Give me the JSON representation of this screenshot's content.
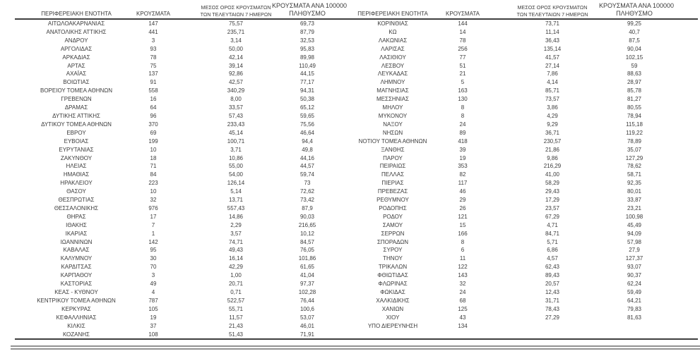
{
  "columns": {
    "region": "ΠΕΡΙΦΕΡΕΙΑΚΗ ΕΝΟΤΗΤΑ",
    "cases": "ΚΡΟΥΣΜΑΤΑ",
    "avg7_line1": "ΜΕΣΟΣ ΟΡΟΣ ΚΡΟΥΣΜΑΤΩΝ",
    "avg7_line2": "ΤΩΝ ΤΕΛΕΥΤΑΙΩΝ 7 ΗΜΕΡΩΝ",
    "per100k_line1": "ΚΡΟΥΣΜΑΤΑ ΑΝΑ 100000",
    "per100k_line2": "ΠΛΗΘΥΣΜΟ"
  },
  "colors": {
    "text": "#3b3b3b",
    "rule_dark": "#3f3f3f",
    "rule_gray": "#929292",
    "background": "#ffffff"
  },
  "left_table": {
    "rows": [
      {
        "region": "ΑΙΤΩΛΟΑΚΑΡΝΑΝΙΑΣ",
        "cases": "147",
        "avg7": "75,57",
        "per100k": "69,73"
      },
      {
        "region": "ΑΝΑΤΟΛΙΚΗΣ ΑΤΤΙΚΗΣ",
        "cases": "441",
        "avg7": "235,71",
        "per100k": "87,79"
      },
      {
        "region": "ΑΝΔΡΟΥ",
        "cases": "3",
        "avg7": "3,14",
        "per100k": "32,53"
      },
      {
        "region": "ΑΡΓΟΛΙΔΑΣ",
        "cases": "93",
        "avg7": "50,00",
        "per100k": "95,83"
      },
      {
        "region": "ΑΡΚΑΔΙΑΣ",
        "cases": "78",
        "avg7": "42,14",
        "per100k": "89,98"
      },
      {
        "region": "ΑΡΤΑΣ",
        "cases": "75",
        "avg7": "39,14",
        "per100k": "110,49"
      },
      {
        "region": "ΑΧΑΪΑΣ",
        "cases": "137",
        "avg7": "92,86",
        "per100k": "44,15"
      },
      {
        "region": "ΒΟΙΩΤΙΑΣ",
        "cases": "91",
        "avg7": "42,57",
        "per100k": "77,17"
      },
      {
        "region": "ΒΟΡΕΙΟΥ ΤΟΜΕΑ ΑΘΗΝΩΝ",
        "cases": "558",
        "avg7": "340,29",
        "per100k": "94,31"
      },
      {
        "region": "ΓΡΕΒΕΝΩΝ",
        "cases": "16",
        "avg7": "8,00",
        "per100k": "50,38"
      },
      {
        "region": "ΔΡΑΜΑΣ",
        "cases": "64",
        "avg7": "33,57",
        "per100k": "65,12"
      },
      {
        "region": "ΔΥΤΙΚΗΣ ΑΤΤΙΚΗΣ",
        "cases": "96",
        "avg7": "57,43",
        "per100k": "59,65"
      },
      {
        "region": "ΔΥΤΙΚΟΥ ΤΟΜΕΑ ΑΘΗΝΩΝ",
        "cases": "370",
        "avg7": "233,43",
        "per100k": "75,56"
      },
      {
        "region": "ΕΒΡΟΥ",
        "cases": "69",
        "avg7": "45,14",
        "per100k": "46,64"
      },
      {
        "region": "ΕΥΒΟΙΑΣ",
        "cases": "199",
        "avg7": "100,71",
        "per100k": "94,4"
      },
      {
        "region": "ΕΥΡΥΤΑΝΙΑΣ",
        "cases": "10",
        "avg7": "3,71",
        "per100k": "49,8"
      },
      {
        "region": "ΖΑΚΥΝΘΟΥ",
        "cases": "18",
        "avg7": "10,86",
        "per100k": "44,16"
      },
      {
        "region": "ΗΛΕΙΑΣ",
        "cases": "71",
        "avg7": "55,00",
        "per100k": "44,57"
      },
      {
        "region": "ΗΜΑΘΙΑΣ",
        "cases": "84",
        "avg7": "54,00",
        "per100k": "59,74"
      },
      {
        "region": "ΗΡΑΚΛΕΙΟΥ",
        "cases": "223",
        "avg7": "126,14",
        "per100k": "73"
      },
      {
        "region": "ΘΑΣΟΥ",
        "cases": "10",
        "avg7": "5,14",
        "per100k": "72,62"
      },
      {
        "region": "ΘΕΣΠΡΩΤΙΑΣ",
        "cases": "32",
        "avg7": "13,71",
        "per100k": "73,42"
      },
      {
        "region": "ΘΕΣΣΑΛΟΝΙΚΗΣ",
        "cases": "976",
        "avg7": "557,43",
        "per100k": "87,9"
      },
      {
        "region": "ΘΗΡΑΣ",
        "cases": "17",
        "avg7": "14,86",
        "per100k": "90,03"
      },
      {
        "region": "ΙΘΑΚΗΣ",
        "cases": "7",
        "avg7": "2,29",
        "per100k": "216,65"
      },
      {
        "region": "ΙΚΑΡΙΑΣ",
        "cases": "1",
        "avg7": "3,57",
        "per100k": "10,12"
      },
      {
        "region": "ΙΩΑΝΝΙΝΩΝ",
        "cases": "142",
        "avg7": "74,71",
        "per100k": "84,57"
      },
      {
        "region": "ΚΑΒΑΛΑΣ",
        "cases": "95",
        "avg7": "49,43",
        "per100k": "76,05"
      },
      {
        "region": "ΚΑΛΥΜΝΟΥ",
        "cases": "30",
        "avg7": "16,14",
        "per100k": "101,86"
      },
      {
        "region": "ΚΑΡΔΙΤΣΑΣ",
        "cases": "70",
        "avg7": "42,29",
        "per100k": "61,65"
      },
      {
        "region": "ΚΑΡΠΑΘΟΥ",
        "cases": "3",
        "avg7": "1,00",
        "per100k": "41,04"
      },
      {
        "region": "ΚΑΣΤΟΡΙΑΣ",
        "cases": "49",
        "avg7": "20,71",
        "per100k": "97,37"
      },
      {
        "region": "ΚΕΑΣ - ΚΥΘΝΟΥ",
        "cases": "4",
        "avg7": "0,71",
        "per100k": "102,28"
      },
      {
        "region": "ΚΕΝΤΡΙΚΟΥ ΤΟΜΕΑ ΑΘΗΝΩΝ",
        "cases": "787",
        "avg7": "522,57",
        "per100k": "76,44"
      },
      {
        "region": "ΚΕΡΚΥΡΑΣ",
        "cases": "105",
        "avg7": "55,71",
        "per100k": "100,6"
      },
      {
        "region": "ΚΕΦΑΛΛΗΝΙΑΣ",
        "cases": "19",
        "avg7": "11,57",
        "per100k": "53,07"
      },
      {
        "region": "ΚΙΛΚΙΣ",
        "cases": "37",
        "avg7": "21,43",
        "per100k": "46,01"
      },
      {
        "region": "ΚΟΖΑΝΗΣ",
        "cases": "108",
        "avg7": "51,43",
        "per100k": "71,91"
      }
    ]
  },
  "right_table": {
    "rows": [
      {
        "region": "ΚΟΡΙΝΘΙΑΣ",
        "cases": "144",
        "avg7": "73,71",
        "per100k": "99,25"
      },
      {
        "region": "ΚΩ",
        "cases": "14",
        "avg7": "11,14",
        "per100k": "40,7"
      },
      {
        "region": "ΛΑΚΩΝΙΑΣ",
        "cases": "78",
        "avg7": "36,43",
        "per100k": "87,5"
      },
      {
        "region": "ΛΑΡΙΣΑΣ",
        "cases": "256",
        "avg7": "135,14",
        "per100k": "90,04"
      },
      {
        "region": "ΛΑΣΙΘΙΟΥ",
        "cases": "77",
        "avg7": "41,57",
        "per100k": "102,15"
      },
      {
        "region": "ΛΕΣΒΟΥ",
        "cases": "51",
        "avg7": "27,14",
        "per100k": "59"
      },
      {
        "region": "ΛΕΥΚΑΔΑΣ",
        "cases": "21",
        "avg7": "7,86",
        "per100k": "88,63"
      },
      {
        "region": "ΛΗΜΝΟΥ",
        "cases": "5",
        "avg7": "4,14",
        "per100k": "28,97"
      },
      {
        "region": "ΜΑΓΝΗΣΙΑΣ",
        "cases": "163",
        "avg7": "85,71",
        "per100k": "85,78"
      },
      {
        "region": "ΜΕΣΣΗΝΙΑΣ",
        "cases": "130",
        "avg7": "73,57",
        "per100k": "81,27"
      },
      {
        "region": "ΜΗΛΟΥ",
        "cases": "8",
        "avg7": "3,86",
        "per100k": "80,55"
      },
      {
        "region": "ΜΥΚΟΝΟΥ",
        "cases": "8",
        "avg7": "4,29",
        "per100k": "78,94"
      },
      {
        "region": "ΝΑΞΟΥ",
        "cases": "24",
        "avg7": "9,29",
        "per100k": "115,18"
      },
      {
        "region": "ΝΗΣΩΝ",
        "cases": "89",
        "avg7": "36,71",
        "per100k": "119,22"
      },
      {
        "region": "ΝΟΤΙΟΥ ΤΟΜΕΑ ΑΘΗΝΩΝ",
        "cases": "418",
        "avg7": "230,57",
        "per100k": "78,89"
      },
      {
        "region": "ΞΑΝΘΗΣ",
        "cases": "39",
        "avg7": "21,86",
        "per100k": "35,07"
      },
      {
        "region": "ΠΑΡΟΥ",
        "cases": "19",
        "avg7": "9,86",
        "per100k": "127,29"
      },
      {
        "region": "ΠΕΙΡΑΙΩΣ",
        "cases": "353",
        "avg7": "216,29",
        "per100k": "78,62"
      },
      {
        "region": "ΠΕΛΛΑΣ",
        "cases": "82",
        "avg7": "41,00",
        "per100k": "58,71"
      },
      {
        "region": "ΠΙΕΡΙΑΣ",
        "cases": "117",
        "avg7": "58,29",
        "per100k": "92,35"
      },
      {
        "region": "ΠΡΕΒΕΖΑΣ",
        "cases": "46",
        "avg7": "29,43",
        "per100k": "80,01"
      },
      {
        "region": "ΡΕΘΥΜΝΟΥ",
        "cases": "29",
        "avg7": "17,29",
        "per100k": "33,87"
      },
      {
        "region": "ΡΟΔΟΠΗΣ",
        "cases": "26",
        "avg7": "23,57",
        "per100k": "23,21"
      },
      {
        "region": "ΡΟΔΟΥ",
        "cases": "121",
        "avg7": "67,29",
        "per100k": "100,98"
      },
      {
        "region": "ΣΑΜΟΥ",
        "cases": "15",
        "avg7": "4,71",
        "per100k": "45,49"
      },
      {
        "region": "ΣΕΡΡΩΝ",
        "cases": "166",
        "avg7": "84,71",
        "per100k": "94,09"
      },
      {
        "region": "ΣΠΟΡΑΔΩΝ",
        "cases": "8",
        "avg7": "5,71",
        "per100k": "57,98"
      },
      {
        "region": "ΣΥΡΟΥ",
        "cases": "6",
        "avg7": "6,86",
        "per100k": "27,9"
      },
      {
        "region": "ΤΗΝΟΥ",
        "cases": "11",
        "avg7": "4,57",
        "per100k": "127,37"
      },
      {
        "region": "ΤΡΙΚΑΛΩΝ",
        "cases": "122",
        "avg7": "62,43",
        "per100k": "93,07"
      },
      {
        "region": "ΦΘΙΩΤΙΔΑΣ",
        "cases": "143",
        "avg7": "89,43",
        "per100k": "90,37"
      },
      {
        "region": "ΦΛΩΡΙΝΑΣ",
        "cases": "32",
        "avg7": "20,57",
        "per100k": "62,24"
      },
      {
        "region": "ΦΩΚΙΔΑΣ",
        "cases": "24",
        "avg7": "12,43",
        "per100k": "59,49"
      },
      {
        "region": "ΧΑΛΚΙΔΙΚΗΣ",
        "cases": "68",
        "avg7": "31,71",
        "per100k": "64,21"
      },
      {
        "region": "ΧΑΝΙΩΝ",
        "cases": "125",
        "avg7": "78,43",
        "per100k": "79,83"
      },
      {
        "region": "ΧΙΟΥ",
        "cases": "43",
        "avg7": "27,29",
        "per100k": "81,63"
      },
      {
        "region": "ΥΠΟ ΔΙΕΡΕΥΝΗΣΗ",
        "cases": "134",
        "avg7": "",
        "per100k": ""
      }
    ]
  }
}
